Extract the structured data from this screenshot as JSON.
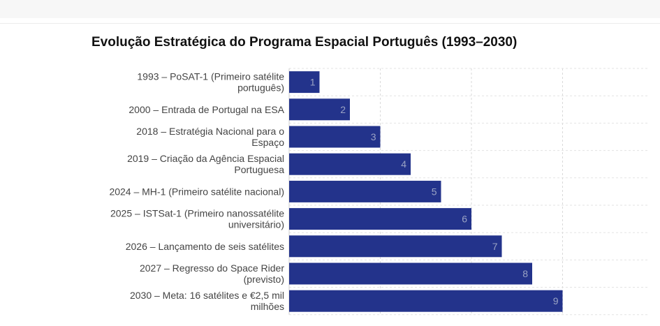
{
  "chart_data": {
    "type": "bar",
    "orientation": "horizontal",
    "title": "Evolução Estratégica do Programa Espacial Português (1993–2030)",
    "xlabel": "",
    "ylabel": "",
    "xlim": [
      0,
      9
    ],
    "grid": true,
    "bar_color": "#23338b",
    "categories": [
      [
        "1993 – PoSAT-1 (Primeiro satélite",
        "português)"
      ],
      [
        "2000 – Entrada de Portugal na ESA"
      ],
      [
        "2018 – Estratégia Nacional para o",
        "Espaço"
      ],
      [
        "2019 – Criação da Agência Espacial",
        "Portuguesa"
      ],
      [
        "2024 – MH-1 (Primeiro satélite nacional)"
      ],
      [
        "2025 – ISTSat-1 (Primeiro nanossatélite",
        "universitário)"
      ],
      [
        "2026 – Lançamento de seis satélites"
      ],
      [
        "2027 – Regresso do Space Rider",
        "(previsto)"
      ],
      [
        "2030 – Meta: 16 satélites e €2,5 mil",
        "milhões"
      ]
    ],
    "values": [
      1,
      2,
      3,
      4,
      5,
      6,
      7,
      8,
      9
    ]
  }
}
